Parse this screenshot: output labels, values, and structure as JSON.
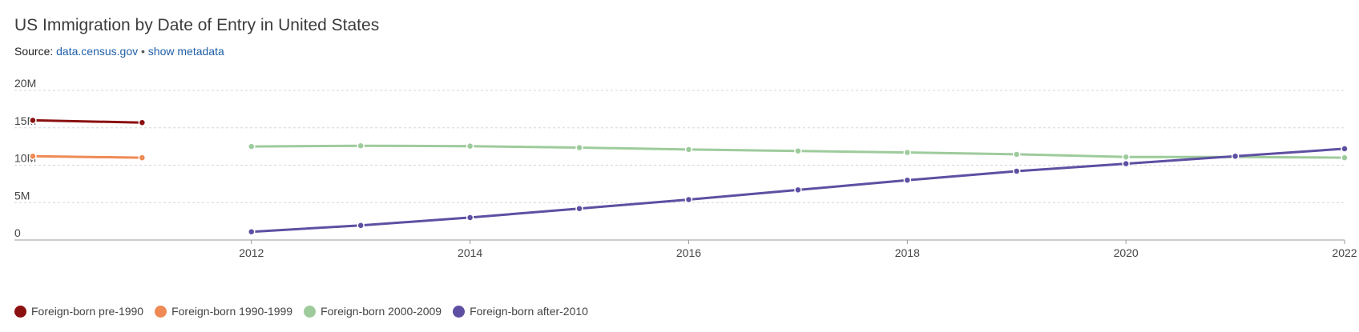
{
  "header": {
    "title": "US Immigration by Date of Entry in United States",
    "source_prefix": "Source:",
    "source_link": "data.census.gov",
    "separator": "•",
    "metadata_link": "show metadata"
  },
  "chart_data": {
    "type": "line",
    "title": "US Immigration by Date of Entry in United States",
    "xlabel": "",
    "ylabel": "",
    "x_ticks": [
      "2012",
      "2014",
      "2016",
      "2018",
      "2020",
      "2022"
    ],
    "y_ticks": [
      "0",
      "5M",
      "10M",
      "15M",
      "20M"
    ],
    "xlim": [
      2009.7,
      2022
    ],
    "ylim": [
      0,
      20000000
    ],
    "grid": true,
    "legend_position": "bottom-left",
    "series": [
      {
        "name": "Foreign-born pre-1990",
        "color": "#8b1010",
        "points": [
          [
            2010,
            16000000
          ],
          [
            2011,
            15700000
          ]
        ]
      },
      {
        "name": "Foreign-born 1990-1999",
        "color": "#ef8a55",
        "points": [
          [
            2010,
            11200000
          ],
          [
            2011,
            11000000
          ]
        ]
      },
      {
        "name": "Foreign-born 2000-2009",
        "color": "#9ecb9c",
        "points": [
          [
            2012,
            12500000
          ],
          [
            2013,
            12600000
          ],
          [
            2014,
            12550000
          ],
          [
            2015,
            12350000
          ],
          [
            2016,
            12100000
          ],
          [
            2017,
            11900000
          ],
          [
            2018,
            11700000
          ],
          [
            2019,
            11450000
          ],
          [
            2020,
            11100000
          ],
          [
            2021,
            11100000
          ],
          [
            2022,
            11000000
          ]
        ]
      },
      {
        "name": "Foreign-born after-2010",
        "color": "#5e4fa2",
        "points": [
          [
            2012,
            1100000
          ],
          [
            2013,
            1950000
          ],
          [
            2014,
            3000000
          ],
          [
            2015,
            4200000
          ],
          [
            2016,
            5400000
          ],
          [
            2017,
            6700000
          ],
          [
            2018,
            8000000
          ],
          [
            2019,
            9200000
          ],
          [
            2020,
            10200000
          ],
          [
            2021,
            11200000
          ],
          [
            2022,
            12200000
          ]
        ]
      }
    ]
  }
}
